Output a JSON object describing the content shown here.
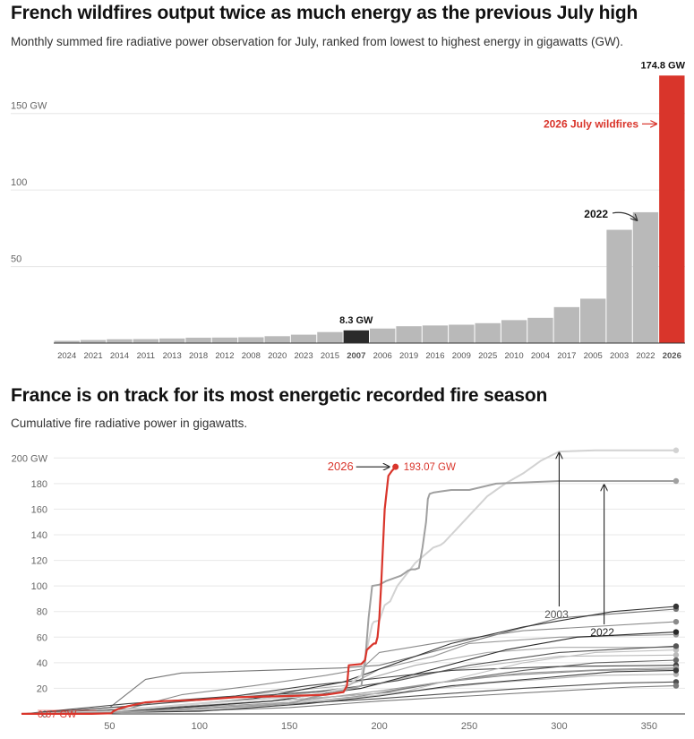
{
  "charts": [
    {
      "title": "French wildfires output twice as much energy as the previous July high",
      "subtitle": "Monthly summed fire radiative power observation for July, ranked from lowest to highest energy in gigawatts (GW).",
      "chart_data": {
        "type": "bar",
        "categories": [
          "2024",
          "2021",
          "2014",
          "2011",
          "2013",
          "2018",
          "2012",
          "2008",
          "2020",
          "2023",
          "2015",
          "2007",
          "2006",
          "2019",
          "2016",
          "2009",
          "2025",
          "2010",
          "2004",
          "2017",
          "2005",
          "2003",
          "2022",
          "2026"
        ],
        "values": [
          1.5,
          2.0,
          2.5,
          2.6,
          3.0,
          3.5,
          3.6,
          3.8,
          4.5,
          5.5,
          7.2,
          8.3,
          9.5,
          11.0,
          11.5,
          12.0,
          13.0,
          15.0,
          16.5,
          23.5,
          29.0,
          74.0,
          85.5,
          174.8
        ],
        "ylim": [
          0,
          175
        ],
        "yticks": [
          50,
          100,
          150
        ],
        "ytick_labels": [
          "50",
          "100",
          "150 GW"
        ],
        "grid": true,
        "colors": {
          "default": "#b9b9b9",
          "2007": "#2b2b2b",
          "2026": "#d9352b"
        },
        "annotations": {
          "value_2007": "8.3 GW",
          "value_2026": "174.8 GW",
          "label_2026": "2026 July wildfires",
          "label_2022": "2022"
        }
      }
    },
    {
      "title": "France is on track for its most energetic recorded fire season",
      "subtitle": "Cumulative fire radiative power in gigawatts.",
      "chart_data": {
        "type": "line",
        "xlabel": "",
        "ylabel": "",
        "xlim": [
          0,
          370
        ],
        "ylim": [
          0,
          210
        ],
        "xticks": [
          50,
          100,
          150,
          200,
          250,
          300,
          350
        ],
        "yticks": [
          0,
          20,
          40,
          60,
          80,
          100,
          120,
          140,
          160,
          180,
          200
        ],
        "ytick_labels": [
          "0",
          "20",
          "40",
          "60",
          "80",
          "100",
          "120",
          "140",
          "160",
          "180",
          "200 GW"
        ],
        "grid": true,
        "colors": {
          "highlight": "#d9352b",
          "y2003": "#d0d0d0",
          "y2022": "#9a9a9a"
        },
        "series": [
          {
            "name": "2026",
            "color": "#d9352b",
            "x": [
              1,
              40,
              51,
              52,
              55,
              60,
              70,
              80,
              100,
              120,
              150,
              170,
              180,
              182,
              183,
              190,
              192,
              193,
              196,
              197,
              198,
              199,
              200,
              201,
              202,
              203,
              205,
              207,
              209
            ],
            "y": [
              0.07,
              0.07,
              0.5,
              2,
              4,
              6,
              9,
              10,
              11,
              13,
              14,
              15,
              17,
              22,
              38,
              39,
              42,
              50,
              54,
              55,
              55,
              60,
              75,
              100,
              130,
              160,
              186,
              190,
              193.07
            ]
          },
          {
            "name": "2003",
            "color": "#d2d2d2",
            "x": [
              1,
              50,
              100,
              160,
              180,
              190,
              196,
              197,
              200,
              203,
              206,
              210,
              220,
              230,
              234,
              236,
              240,
              260,
              265,
              270,
              280,
              290,
              300,
              320,
              340,
              365
            ],
            "y": [
              0,
              2,
              8,
              14,
              20,
              30,
              70,
              72,
              73,
              85,
              88,
              100,
              118,
              130,
              132,
              134,
              140,
              170,
              175,
              180,
              188,
              198,
              205,
              206,
              206,
              206
            ]
          },
          {
            "name": "2022",
            "color": "#a0a0a0",
            "x": [
              1,
              50,
              100,
              150,
              160,
              185,
              190,
              192,
              194,
              196,
              200,
              204,
              208,
              212,
              214,
              216,
              218,
              220,
              222,
              224,
              226,
              227,
              228,
              230,
              235,
              240,
              250,
              265,
              300,
              330,
              365
            ],
            "y": [
              0,
              1,
              4,
              8,
              12,
              20,
              22,
              40,
              75,
              100,
              101,
              104,
              106,
              108,
              110,
              112,
              113,
              113,
              114,
              130,
              150,
              168,
              172,
              173,
              174,
              175,
              175,
              180,
              182,
              182,
              182
            ]
          },
          {
            "x": [
              1,
              50,
              70,
              90,
              180,
              200,
              220,
              260,
              300,
              365
            ],
            "y": [
              0,
              5,
              27,
              32,
              36,
              38,
              45,
              60,
              75,
              82
            ]
          },
          {
            "x": [
              1,
              60,
              90,
              130,
              170,
              190,
              200,
              230,
              280,
              365
            ],
            "y": [
              0,
              4,
              15,
              22,
              30,
              35,
              48,
              55,
              65,
              72
            ]
          },
          {
            "x": [
              1,
              60,
              120,
              180,
              200,
              230,
              250,
              300,
              365
            ],
            "y": [
              0,
              3,
              10,
              20,
              35,
              45,
              55,
              60,
              62
            ]
          },
          {
            "x": [
              1,
              60,
              120,
              180,
              220,
              260,
              300,
              365
            ],
            "y": [
              0,
              6,
              14,
              22,
              38,
              48,
              52,
              52
            ]
          },
          {
            "x": [
              1,
              70,
              130,
              190,
              220,
              260,
              300,
              365
            ],
            "y": [
              0,
              5,
              12,
              20,
              30,
              38,
              45,
              46
            ]
          },
          {
            "x": [
              1,
              70,
              140,
              200,
              240,
              280,
              320,
              365
            ],
            "y": [
              0,
              4,
              10,
              16,
              26,
              34,
              40,
              42
            ]
          },
          {
            "x": [
              1,
              60,
              120,
              160,
              200,
              240,
              300,
              365
            ],
            "y": [
              0,
              8,
              14,
              22,
              28,
              34,
              37,
              38
            ]
          },
          {
            "x": [
              1,
              80,
              150,
              190,
              230,
              270,
              320,
              365
            ],
            "y": [
              0,
              3,
              8,
              14,
              24,
              30,
              34,
              35
            ]
          },
          {
            "x": [
              1,
              80,
              150,
              200,
              240,
              280,
              330,
              365
            ],
            "y": [
              0,
              4,
              9,
              18,
              26,
              32,
              35,
              36
            ]
          },
          {
            "x": [
              1,
              60,
              120,
              180,
              220,
              260,
              320,
              365
            ],
            "y": [
              0,
              2,
              8,
              14,
              18,
              24,
              30,
              31
            ]
          },
          {
            "x": [
              1,
              80,
              140,
              200,
              240,
              280,
              330,
              365
            ],
            "y": [
              0,
              3,
              7,
              12,
              16,
              20,
              24,
              25
            ]
          },
          {
            "x": [
              1,
              90,
              150,
              200,
              250,
              300,
              340,
              365
            ],
            "y": [
              0,
              2,
              5,
              10,
              14,
              18,
              21,
              22
            ]
          },
          {
            "x": [
              1,
              90,
              150,
              210,
              250,
              280,
              320,
              365
            ],
            "y": [
              0,
              3,
              8,
              16,
              30,
              40,
              48,
              50
            ]
          },
          {
            "x": [
              1,
              70,
              130,
              180,
              210,
              240,
              280,
              330,
              365
            ],
            "y": [
              0,
              4,
              12,
              25,
              40,
              55,
              68,
              80,
              84
            ]
          },
          {
            "x": [
              1,
              70,
              140,
              190,
              230,
              270,
              310,
              365
            ],
            "y": [
              0,
              3,
              10,
              20,
              35,
              50,
              60,
              64
            ]
          },
          {
            "x": [
              1,
              100,
              160,
              200,
              240,
              290,
              330,
              365
            ],
            "y": [
              0,
              2,
              8,
              14,
              22,
              28,
              33,
              34
            ]
          },
          {
            "x": [
              1,
              60,
              110,
              170,
              210,
              250,
              300,
              365
            ],
            "y": [
              0,
              6,
              12,
              18,
              26,
              38,
              48,
              53
            ]
          }
        ],
        "annotations": {
          "label_2026": "2026",
          "value_2026": "193.07 GW",
          "start_value": "0.07 GW",
          "label_2003": "2003",
          "label_2022": "2022"
        }
      }
    }
  ]
}
